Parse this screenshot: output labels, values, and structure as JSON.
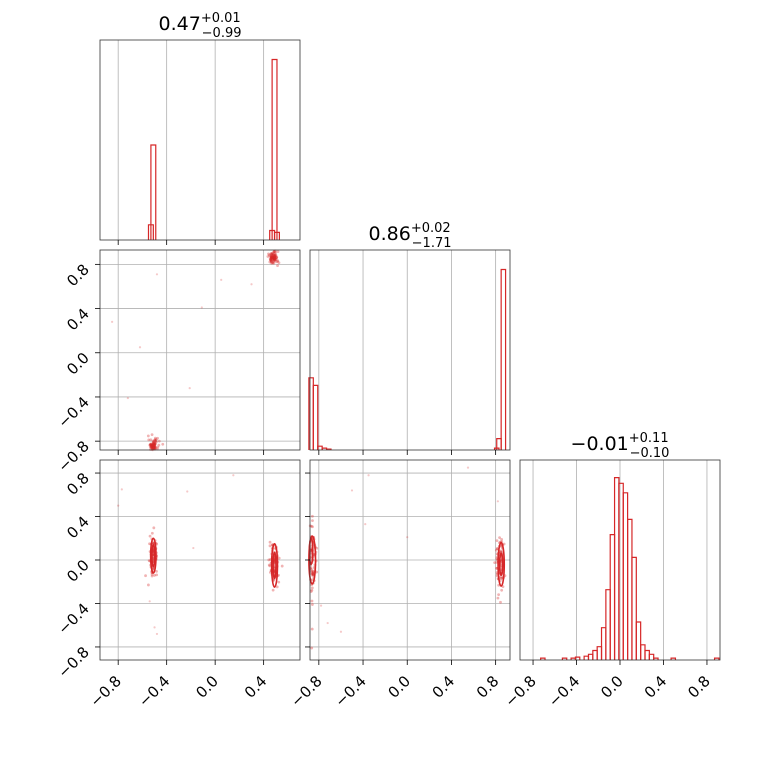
{
  "chart_data": {
    "type": "corner",
    "color": "#d62728",
    "ticks": [
      "−0.8",
      "−0.4",
      "0.0",
      "0.4",
      "0.8"
    ],
    "tick_values": [
      -0.8,
      -0.4,
      0.0,
      0.4,
      0.8
    ],
    "grid": true,
    "params": [
      {
        "title_main": "0.47",
        "title_sup": "+0.01",
        "title_sub": "−0.99",
        "xlim": [
          -0.95,
          0.7
        ],
        "hist": [
          {
            "x": -0.53,
            "h": 0.08
          },
          {
            "x": -0.51,
            "h": 0.5
          },
          {
            "x": 0.47,
            "h": 0.05
          },
          {
            "x": 0.49,
            "h": 0.95
          },
          {
            "x": 0.51,
            "h": 0.04
          }
        ]
      },
      {
        "title_main": "0.86",
        "title_sup": "+0.02",
        "title_sub": "−1.71",
        "xlim": [
          -0.88,
          0.93
        ],
        "hist": [
          {
            "x": -0.87,
            "h": 0.38
          },
          {
            "x": -0.83,
            "h": 0.34
          },
          {
            "x": -0.79,
            "h": 0.02
          },
          {
            "x": -0.75,
            "h": 0.01
          },
          {
            "x": -0.71,
            "h": 0.005
          },
          {
            "x": 0.81,
            "h": 0.01
          },
          {
            "x": 0.83,
            "h": 0.06
          },
          {
            "x": 0.87,
            "h": 0.95
          }
        ]
      },
      {
        "title_main": "−0.01",
        "title_sup": "+0.11",
        "title_sub": "−0.10",
        "xlim": [
          -0.92,
          0.92
        ],
        "hist": [
          {
            "x": -0.71,
            "h": 0.01
          },
          {
            "x": -0.51,
            "h": 0.01
          },
          {
            "x": -0.43,
            "h": 0.01
          },
          {
            "x": -0.39,
            "h": 0.015
          },
          {
            "x": -0.31,
            "h": 0.02
          },
          {
            "x": -0.27,
            "h": 0.03
          },
          {
            "x": -0.23,
            "h": 0.05
          },
          {
            "x": -0.19,
            "h": 0.07
          },
          {
            "x": -0.15,
            "h": 0.17
          },
          {
            "x": -0.11,
            "h": 0.37
          },
          {
            "x": -0.07,
            "h": 0.66
          },
          {
            "x": -0.03,
            "h": 0.96
          },
          {
            "x": 0.01,
            "h": 0.93
          },
          {
            "x": 0.05,
            "h": 0.88
          },
          {
            "x": 0.09,
            "h": 0.74
          },
          {
            "x": 0.13,
            "h": 0.54
          },
          {
            "x": 0.17,
            "h": 0.2
          },
          {
            "x": 0.21,
            "h": 0.08
          },
          {
            "x": 0.25,
            "h": 0.05
          },
          {
            "x": 0.29,
            "h": 0.03
          },
          {
            "x": 0.33,
            "h": 0.01
          },
          {
            "x": 0.49,
            "h": 0.01
          },
          {
            "x": 0.89,
            "h": 0.01
          }
        ]
      }
    ],
    "pairs": [
      {
        "x_param": 0,
        "y_param": 1,
        "xlim": [
          -0.95,
          0.7
        ],
        "ylim": [
          -0.88,
          0.93
        ],
        "clusters": [
          {
            "cx": -0.51,
            "cy": -0.84,
            "sx": 0.02,
            "sy": 0.03
          },
          {
            "cx": 0.48,
            "cy": 0.86,
            "sx": 0.02,
            "sy": 0.03
          }
        ],
        "scatter": [
          [
            -0.48,
            0.71
          ],
          [
            -0.62,
            0.05
          ],
          [
            -0.21,
            -0.32
          ],
          [
            0.3,
            0.62
          ],
          [
            -0.72,
            -0.41
          ],
          [
            -0.85,
            0.28
          ],
          [
            0.05,
            0.66
          ],
          [
            -0.11,
            0.41
          ]
        ]
      },
      {
        "x_param": 0,
        "y_param": 2,
        "xlim": [
          -0.95,
          0.7
        ],
        "ylim": [
          -0.92,
          0.92
        ],
        "clusters": [
          {
            "cx": -0.51,
            "cy": 0.05,
            "sx": 0.015,
            "sy": 0.08
          },
          {
            "cx": 0.49,
            "cy": -0.04,
            "sx": 0.02,
            "sy": 0.09
          }
        ],
        "contours": [
          {
            "cx": -0.51,
            "cy": 0.04,
            "rx": 0.012,
            "ry": 0.1
          },
          {
            "cx": -0.51,
            "cy": 0.04,
            "rx": 0.022,
            "ry": 0.16
          },
          {
            "cx": 0.49,
            "cy": -0.05,
            "rx": 0.012,
            "ry": 0.12
          },
          {
            "cx": 0.49,
            "cy": -0.05,
            "rx": 0.024,
            "ry": 0.2
          }
        ],
        "scatter": [
          [
            -0.8,
            0.5
          ],
          [
            -0.77,
            0.65
          ],
          [
            -0.5,
            -0.62
          ],
          [
            -0.48,
            -0.68
          ],
          [
            -0.23,
            0.63
          ],
          [
            -0.18,
            0.11
          ],
          [
            -0.54,
            -0.38
          ],
          [
            0.15,
            0.78
          ]
        ]
      },
      {
        "x_param": 1,
        "y_param": 2,
        "xlim": [
          -0.88,
          0.93
        ],
        "ylim": [
          -0.92,
          0.92
        ],
        "clusters": [
          {
            "cx": -0.86,
            "cy": 0.0,
            "sx": 0.02,
            "sy": 0.2
          },
          {
            "cx": 0.84,
            "cy": -0.03,
            "sx": 0.02,
            "sy": 0.15
          }
        ],
        "contours": [
          {
            "cx": -0.87,
            "cy": 0.08,
            "rx": 0.015,
            "ry": 0.12
          },
          {
            "cx": -0.86,
            "cy": 0.0,
            "rx": 0.03,
            "ry": 0.22
          },
          {
            "cx": 0.85,
            "cy": -0.04,
            "rx": 0.014,
            "ry": 0.1
          },
          {
            "cx": 0.85,
            "cy": -0.04,
            "rx": 0.028,
            "ry": 0.2
          }
        ],
        "scatter": [
          [
            -0.38,
            0.33
          ],
          [
            -0.5,
            0.64
          ],
          [
            -0.35,
            0.78
          ],
          [
            0.0,
            0.21
          ],
          [
            0.55,
            0.85
          ],
          [
            0.82,
            0.54
          ],
          [
            -0.78,
            -0.42
          ],
          [
            -0.72,
            -0.58
          ],
          [
            -0.6,
            -0.66
          ]
        ]
      }
    ]
  }
}
